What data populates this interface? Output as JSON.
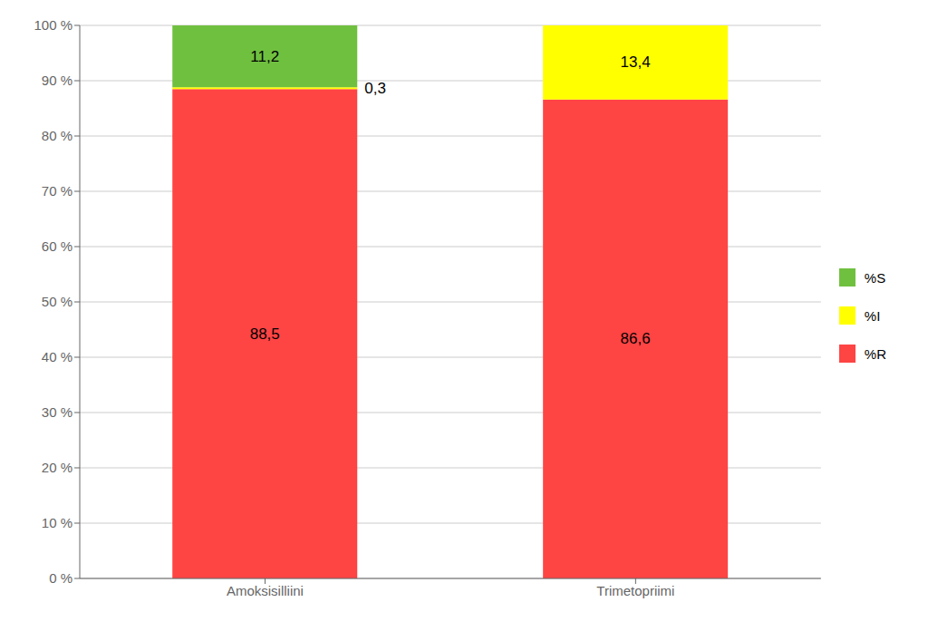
{
  "chart_data": {
    "type": "bar",
    "stacked": true,
    "data_labels": true,
    "grid": true,
    "legend": "right",
    "categories": [
      "Amoksisilliini",
      "Trimetopriimi"
    ],
    "series": [
      {
        "name": "%R",
        "color": "#FF4444",
        "values": [
          88.5,
          86.6
        ],
        "value_labels": [
          "88,5",
          "86,6"
        ]
      },
      {
        "name": "%I",
        "color": "#FFFF00",
        "values": [
          0.3,
          13.4
        ],
        "value_labels": [
          "0,3",
          "13,4"
        ]
      },
      {
        "name": "%S",
        "color": "#70C040",
        "values": [
          11.2,
          0.0
        ],
        "value_labels": [
          "11,2",
          null
        ]
      }
    ],
    "ylim": [
      0,
      100
    ],
    "yticks": [
      {
        "value": 0,
        "label": "0 %"
      },
      {
        "value": 10,
        "label": "10 %"
      },
      {
        "value": 20,
        "label": "20 %"
      },
      {
        "value": 30,
        "label": "30 %"
      },
      {
        "value": 40,
        "label": "40 %"
      },
      {
        "value": 50,
        "label": "50 %"
      },
      {
        "value": 60,
        "label": "60 %"
      },
      {
        "value": 70,
        "label": "70 %"
      },
      {
        "value": 80,
        "label": "80 %"
      },
      {
        "value": 90,
        "label": "90 %"
      },
      {
        "value": 100,
        "label": "100 %"
      }
    ]
  }
}
